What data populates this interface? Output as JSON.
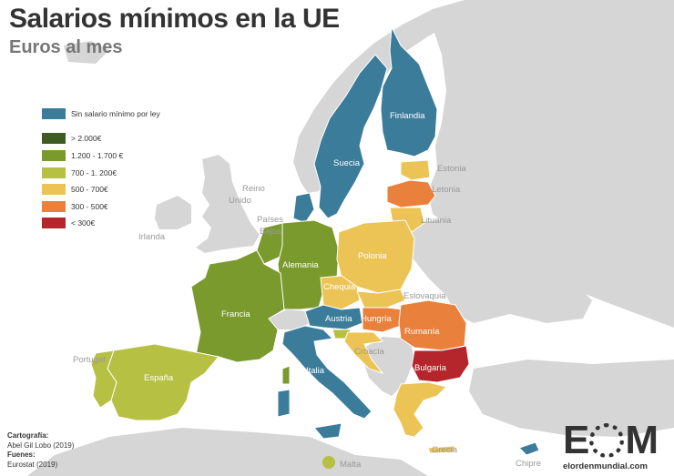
{
  "title": "Salarios mínimos en la UE",
  "subtitle": "Euros al mes",
  "colors": {
    "none": "#3a7c99",
    "gt2000": "#3e5b23",
    "c1200_1700": "#7a9a2d",
    "c700_1200": "#b6c043",
    "c500_700": "#ecc455",
    "c300_500": "#e9803c",
    "lt300": "#b5252c",
    "non_eu": "#d6d6d6",
    "sea": "#ffffff"
  },
  "legend": [
    {
      "label": "Sin salario mínimo por ley",
      "color": "#3a7c99"
    },
    {
      "label": "> 2.000€",
      "color": "#3e5b23"
    },
    {
      "label": "1.200 - 1.700 €",
      "color": "#7a9a2d"
    },
    {
      "label": "700 - 1. 200€",
      "color": "#b6c043"
    },
    {
      "label": "500 - 700€",
      "color": "#ecc455"
    },
    {
      "label": "300 - 500€",
      "color": "#e9803c"
    },
    {
      "label": "< 300€",
      "color": "#b5252c"
    }
  ],
  "countries": {
    "finlandia": {
      "label": "Finlandia",
      "category": "Sin salario mínimo por ley"
    },
    "suecia": {
      "label": "Suecia",
      "category": "Sin salario mínimo por ley"
    },
    "estonia": {
      "label": "Estonia",
      "category": "500 - 700€"
    },
    "letonia": {
      "label": "Letonia",
      "category": "300 - 500€"
    },
    "lituania": {
      "label": "Lituania",
      "category": "500 - 700€"
    },
    "reino_unido": {
      "label_line1": "Reino",
      "label_line2": "Unido"
    },
    "irlanda": {
      "label": "Irlanda"
    },
    "paises_bajos": {
      "label_line1": "Países",
      "label_line2": "Bajos"
    },
    "alemania": {
      "label": "Alemania",
      "category": "1.200 - 1.700 €"
    },
    "polonia": {
      "label": "Polonia",
      "category": "500 - 700€"
    },
    "chequia": {
      "label": "Chequia",
      "category": "500 - 700€"
    },
    "eslovaquia": {
      "label": "Eslovaquia",
      "category": "500 - 700€"
    },
    "francia": {
      "label": "Francia",
      "category": "1.200 - 1.700 €"
    },
    "austria": {
      "label": "Austria",
      "category": "Sin salario mínimo por ley"
    },
    "hungria": {
      "label": "Hungría",
      "category": "300 - 500€"
    },
    "rumania": {
      "label": "Rumanía",
      "category": "300 - 500€"
    },
    "croacia": {
      "label": "Croacia",
      "category": "500 - 700€"
    },
    "portugal": {
      "label": "Portugal",
      "category": "700 - 1. 200€"
    },
    "espana": {
      "label": "España",
      "category": "700 - 1. 200€"
    },
    "italia": {
      "label": "Italia",
      "category": "Sin salario mínimo por ley"
    },
    "bulgaria": {
      "label": "Bulgaria",
      "category": "< 300€"
    },
    "grecia": {
      "label": "Grecia",
      "category": "500 - 700€"
    },
    "malta": {
      "label": "Malta",
      "category": "700 - 1. 200€"
    },
    "chipre": {
      "label": "Chipre",
      "category": "Sin salario mínimo por ley"
    }
  },
  "credits": {
    "cartografia_label": "Cartografía:",
    "cartografia_value": "Abel Gil Lobo (2019)",
    "fuentes_label": "Fuenes:",
    "fuentes_value": "Eurostat (2019)"
  },
  "logo": {
    "letter1": "E",
    "letter3": "M",
    "url": "elordenmundial.com"
  }
}
